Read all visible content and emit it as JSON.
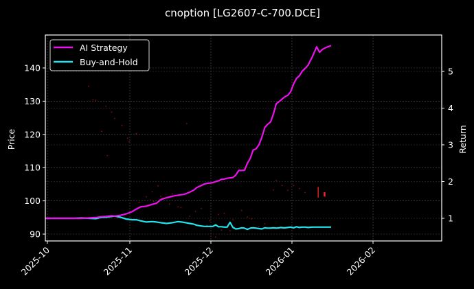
{
  "chart_data": {
    "type": "line",
    "title": "cnoption [LG2607-C-700.DCE]",
    "xlabel": "",
    "ylabel": "Price",
    "y2label": "Return",
    "x_ticks": [
      "2025-10",
      "2025-11",
      "2025-12",
      "2026-01",
      "2026-02"
    ],
    "y_ticks": [
      90,
      100,
      110,
      120,
      130,
      140
    ],
    "y2_ticks": [
      1,
      2,
      3,
      4,
      5
    ],
    "ylim": [
      88.2,
      149.8
    ],
    "y2lim": [
      0.37,
      5.97
    ],
    "xlim_days": [
      -1,
      150
    ],
    "grid": true,
    "legend_position": "upper left",
    "background": "#000000",
    "series": [
      {
        "name": "AI Strategy",
        "axis": "right",
        "color": "#ee11ee",
        "x_days": [
          0,
          10,
          20,
          25,
          30,
          35,
          38,
          42,
          46,
          48,
          52,
          56,
          60,
          63,
          66,
          70,
          74,
          77,
          80,
          84,
          88,
          92,
          96,
          100,
          103,
          105,
          108,
          110,
          112,
          114,
          116,
          118,
          120,
          122,
          124,
          126,
          128,
          130,
          132,
          134,
          136,
          138,
          140,
          142,
          144,
          146,
          148,
          150,
          152,
          154,
          156,
          158,
          160,
          162,
          163,
          165,
          166,
          168,
          170,
          172,
          174,
          176,
          178,
          180,
          182,
          185,
          188,
          190,
          192,
          195,
          198
        ],
        "values": [
          1.0,
          1.0,
          1.0,
          1.0,
          1.01,
          1.02,
          1.04,
          1.05,
          1.07,
          1.06,
          1.08,
          1.12,
          1.18,
          1.25,
          1.31,
          1.33,
          1.38,
          1.41,
          1.51,
          1.56,
          1.6,
          1.63,
          1.65,
          1.71,
          1.77,
          1.84,
          1.89,
          1.93,
          1.95,
          1.96,
          1.97,
          2.0,
          2.02,
          2.06,
          2.07,
          2.09,
          2.1,
          2.11,
          2.18,
          2.3,
          2.3,
          2.31,
          2.5,
          2.63,
          2.86,
          2.89,
          3.0,
          3.21,
          3.47,
          3.56,
          3.62,
          3.84,
          4.12,
          4.18,
          4.21,
          4.28,
          4.31,
          4.35,
          4.45,
          4.66,
          4.81,
          4.88,
          5.01,
          5.08,
          5.17,
          5.4,
          5.67,
          5.52,
          5.6,
          5.66,
          5.7
        ]
      },
      {
        "name": "Buy-and-Hold",
        "axis": "right",
        "color": "#22e4ee",
        "x_days": [
          0,
          10,
          20,
          25,
          30,
          35,
          38,
          42,
          46,
          48,
          52,
          56,
          60,
          63,
          66,
          70,
          74,
          77,
          80,
          84,
          88,
          92,
          96,
          100,
          103,
          105,
          108,
          110,
          112,
          114,
          116,
          118,
          120,
          122,
          124,
          126,
          128,
          130,
          132,
          134,
          136,
          138,
          140,
          142,
          144,
          146,
          148,
          150,
          152,
          154,
          156,
          158,
          160,
          162,
          163,
          165,
          166,
          168,
          170,
          172,
          174,
          176,
          178,
          180,
          182,
          185,
          188,
          190,
          192,
          195,
          198
        ],
        "values": [
          1.0,
          1.0,
          1.0,
          1.01,
          1.0,
          0.99,
          1.02,
          1.03,
          1.05,
          1.06,
          1.03,
          0.98,
          0.96,
          0.96,
          0.93,
          0.9,
          0.91,
          0.9,
          0.88,
          0.86,
          0.88,
          0.91,
          0.89,
          0.86,
          0.84,
          0.81,
          0.79,
          0.78,
          0.78,
          0.78,
          0.78,
          0.82,
          0.77,
          0.77,
          0.76,
          0.76,
          0.89,
          0.75,
          0.71,
          0.72,
          0.74,
          0.73,
          0.7,
          0.73,
          0.74,
          0.73,
          0.72,
          0.71,
          0.74,
          0.73,
          0.73,
          0.74,
          0.73,
          0.74,
          0.75,
          0.74,
          0.74,
          0.75,
          0.76,
          0.74,
          0.77,
          0.75,
          0.76,
          0.76,
          0.75,
          0.76,
          0.76,
          0.76,
          0.76,
          0.76,
          0.76
        ]
      }
    ],
    "price_scatter": {
      "axis": "left",
      "color": "#cc1111",
      "points": [
        [
          18,
          139.2
        ],
        [
          30,
          134.5
        ],
        [
          33,
          130.4
        ],
        [
          35,
          130.3
        ],
        [
          39,
          120.9
        ],
        [
          42,
          128.5
        ],
        [
          43,
          113.6
        ],
        [
          46,
          126.7
        ],
        [
          48,
          124.8
        ],
        [
          53,
          122.7
        ],
        [
          57,
          118.9
        ],
        [
          58,
          117.8
        ],
        [
          63,
          120.2
        ],
        [
          65,
          99.6
        ],
        [
          70,
          101.2
        ],
        [
          74,
          102.7
        ],
        [
          75,
          99.8
        ],
        [
          78,
          104.5
        ],
        [
          80,
          101.4
        ],
        [
          82,
          100.6
        ],
        [
          86,
          99.0
        ],
        [
          88,
          102.1
        ],
        [
          92,
          98.2
        ],
        [
          94,
          98.0
        ],
        [
          98,
          123.3
        ],
        [
          100,
          95.4
        ],
        [
          104,
          96.8
        ],
        [
          108,
          97.7
        ],
        [
          112,
          92.6
        ],
        [
          114,
          94.0
        ],
        [
          118,
          89.1
        ],
        [
          120,
          95.9
        ],
        [
          122,
          91.2
        ],
        [
          124,
          96.2
        ],
        [
          128,
          91.0
        ],
        [
          130,
          94.3
        ],
        [
          136,
          97.1
        ],
        [
          140,
          95.1
        ],
        [
          143,
          94.6
        ],
        [
          148,
          92.2
        ],
        [
          152,
          93.1
        ],
        [
          158,
          103.3
        ],
        [
          160,
          106.2
        ],
        [
          164,
          104.6
        ],
        [
          168,
          103.2
        ],
        [
          172,
          104.6
        ],
        [
          176,
          103.7
        ],
        [
          180,
          102.5
        ]
      ]
    },
    "price_bars": {
      "axis": "left",
      "color": "#ff2222",
      "bars": [
        {
          "x_day": 190,
          "low": 101.0,
          "high": 104.2
        },
        {
          "x_day": 193,
          "low": 101.3,
          "high": 102.6
        }
      ]
    }
  },
  "legend": {
    "items": [
      {
        "label": "AI Strategy",
        "color": "#ee11ee"
      },
      {
        "label": "Buy-and-Hold",
        "color": "#22e4ee"
      }
    ]
  }
}
